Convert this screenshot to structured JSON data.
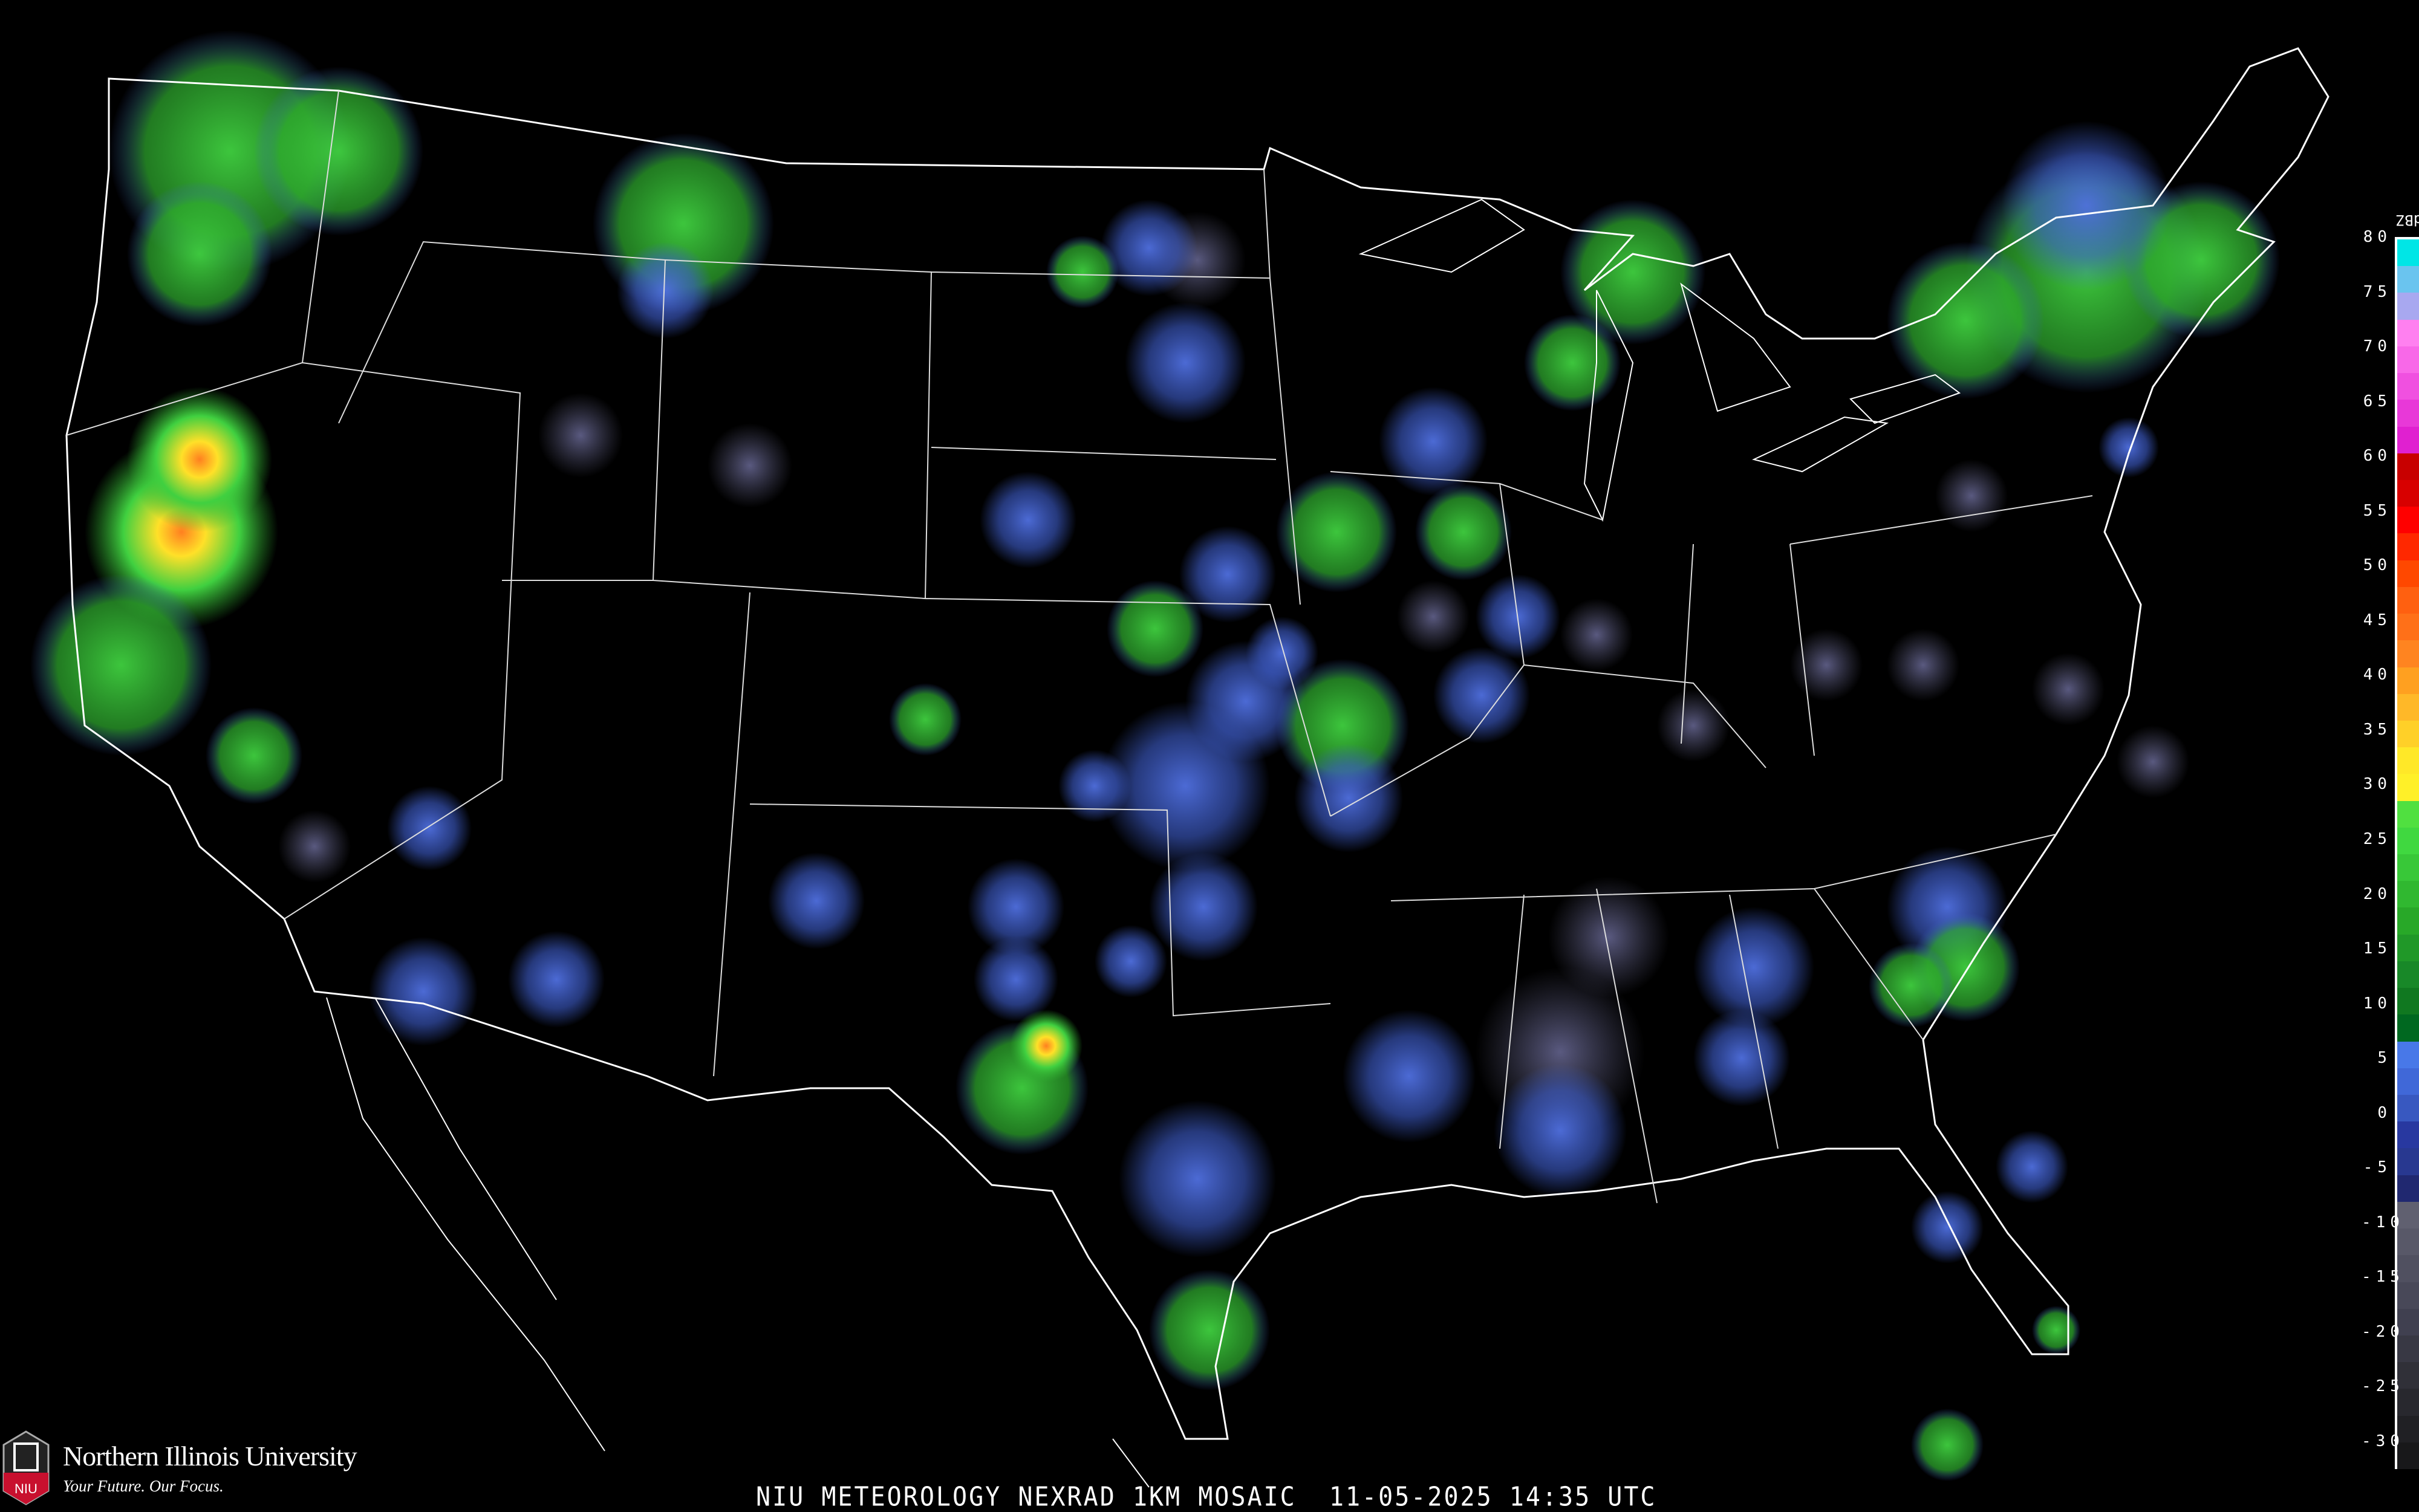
{
  "caption": "NIU METEOROLOGY NEXRAD 1KM MOSAIC  11-05-2025 14:35 UTC",
  "logo": {
    "name": "Northern Illinois University",
    "tagline": "Your Future. Our Focus.",
    "badge": "NIU",
    "badge_color": "#c8102e"
  },
  "legend": {
    "unit": "dBZ",
    "ticks": [
      "80",
      "75",
      "70",
      "65",
      "60",
      "55",
      "50",
      "45",
      "40",
      "35",
      "30",
      "25",
      "20",
      "15",
      "10",
      "5",
      "0",
      "-5",
      "-10",
      "-15",
      "-20",
      "-25",
      "-30"
    ],
    "colors": [
      "#00e6e6",
      "#6ac4ef",
      "#a8a8f0",
      "#ff80f0",
      "#f868e8",
      "#f050e0",
      "#e838d8",
      "#e020d0",
      "#c80000",
      "#d80000",
      "#ff0000",
      "#ff2800",
      "#ff4800",
      "#ff6010",
      "#ff7018",
      "#ff8420",
      "#ffa020",
      "#ffb828",
      "#ffd028",
      "#ffe828",
      "#fff028",
      "#50e040",
      "#40d840",
      "#38c838",
      "#30b830",
      "#28a828",
      "#209828",
      "#188828",
      "#107820",
      "#006820",
      "#4878e8",
      "#4068d8",
      "#3858c0",
      "#2838a0",
      "#283890",
      "#202870",
      "#606070",
      "#585868",
      "#505060",
      "#484858",
      "#404050",
      "#383844",
      "#303038",
      "#28282e",
      "#202024",
      "#18181a"
    ]
  },
  "colors": {
    "background": "#000000",
    "boundaries": "#ffffff",
    "county_lines": "#666666",
    "highways": "#8b4513"
  }
}
